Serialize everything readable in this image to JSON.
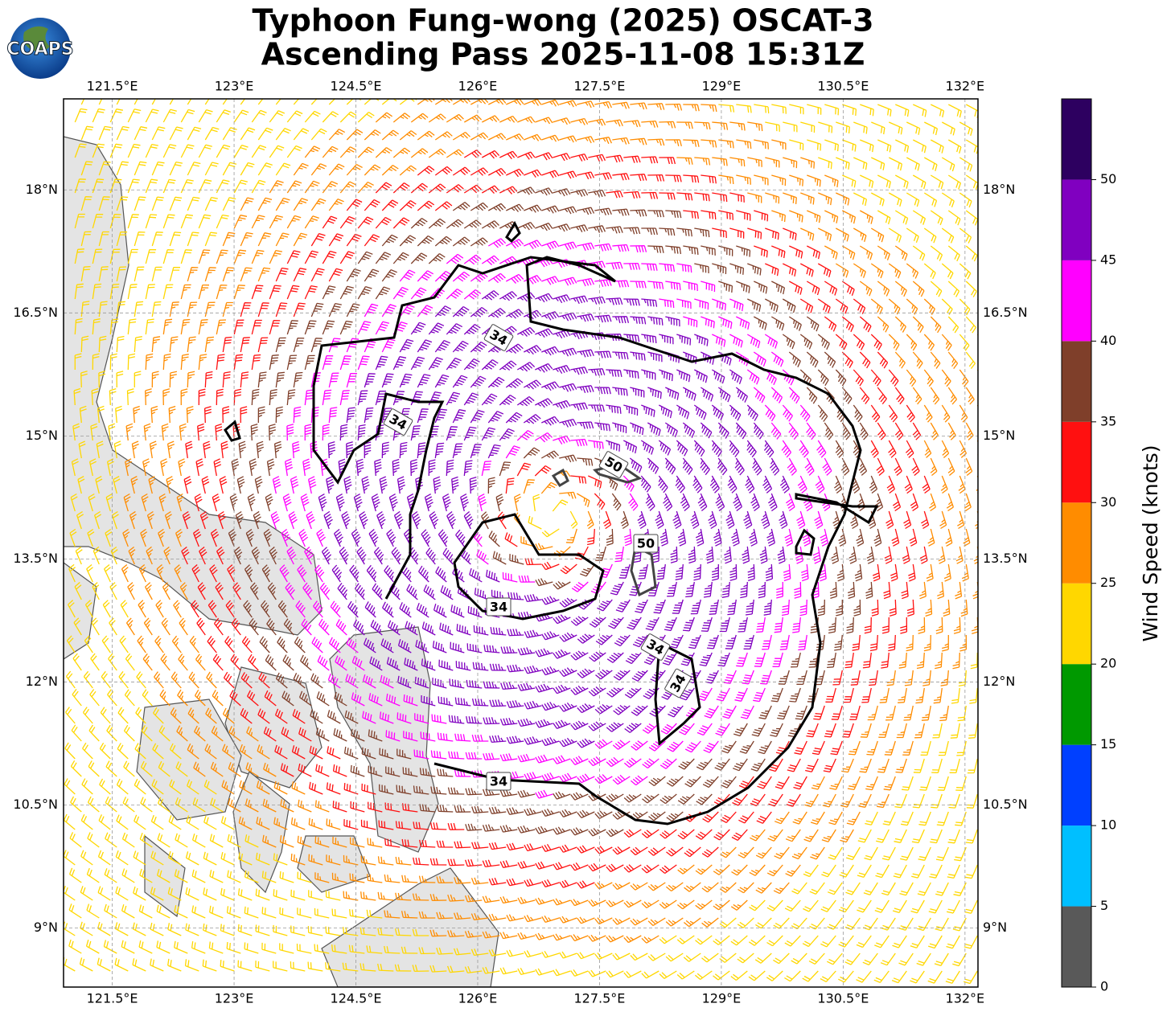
{
  "logo": "COAPS",
  "map": {
    "title": [
      "Typhoon Fung-wong (2025) OSCAT-3",
      "Ascending Pass 2025-11-08 15:31Z"
    ],
    "lonlim": [
      120.9,
      132.16
    ],
    "latlim": [
      8.28,
      19.11
    ],
    "lon_ticks": [
      {
        "value": 121.5,
        "label": "121.5°E"
      },
      {
        "value": 123,
        "label": "123°E"
      },
      {
        "value": 124.5,
        "label": "124.5°E"
      },
      {
        "value": 126,
        "label": "126°E"
      },
      {
        "value": 127.5,
        "label": "127.5°E"
      },
      {
        "value": 129,
        "label": "129°E"
      },
      {
        "value": 130.5,
        "label": "130.5°E"
      },
      {
        "value": 132,
        "label": "132°E"
      }
    ],
    "lat_ticks": [
      {
        "value": 9,
        "label": "9°N"
      },
      {
        "value": 10.5,
        "label": "10.5°N"
      },
      {
        "value": 12,
        "label": "12°N"
      },
      {
        "value": 13.5,
        "label": "13.5°N"
      },
      {
        "value": 15,
        "label": "15°N"
      },
      {
        "value": 16.5,
        "label": "16.5°N"
      },
      {
        "value": 18,
        "label": "18°N"
      }
    ],
    "contour_labels": [
      "34",
      "34",
      "34",
      "34",
      "34",
      "34",
      "50",
      "50"
    ]
  },
  "colorbar": {
    "label": "Wind Speed (knots)",
    "bounds": [
      0,
      5,
      10,
      15,
      20,
      25,
      30,
      35,
      40,
      45,
      50,
      55
    ],
    "colors": [
      "#595959",
      "#00bfff",
      "#0040ff",
      "#009900",
      "#ffd700",
      "#ff8c00",
      "#ff1010",
      "#7f3f2a",
      "#ff00ff",
      "#8000c0",
      "#2d0060"
    ],
    "ticks": [
      0,
      5,
      10,
      15,
      20,
      25,
      30,
      35,
      40,
      45,
      50
    ]
  }
}
